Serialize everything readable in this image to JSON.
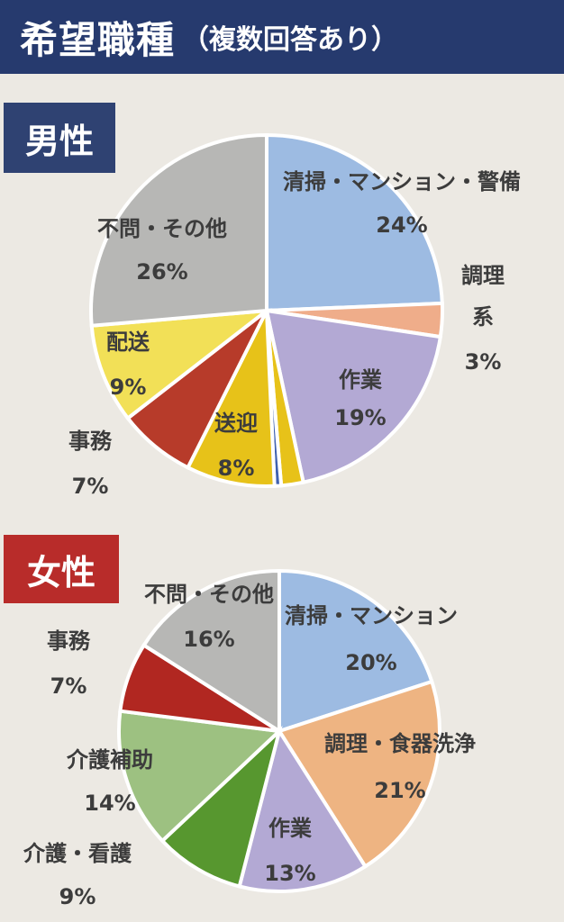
{
  "header": {
    "title": "希望職種",
    "subtitle": "（複数回答あり）"
  },
  "badges": {
    "male": "男性",
    "female": "女性"
  },
  "chart_data": [
    {
      "type": "pie",
      "group": "男性",
      "slices": [
        {
          "label": "清掃・マンション・警備",
          "value": 24,
          "value_label": "24%",
          "color": "#9dbbe2"
        },
        {
          "label": "調理系",
          "value": 3,
          "value_label": "3%",
          "color": "#efad8a"
        },
        {
          "label": "作業",
          "value": 19,
          "value_label": "19%",
          "color": "#b3a9d4"
        },
        {
          "label": "",
          "value": 2,
          "value_label": "",
          "color": "#e7c219"
        },
        {
          "label": "",
          "value": 0.6,
          "value_label": "",
          "color": "#3f61b0"
        },
        {
          "label": "送迎",
          "value": 8,
          "value_label": "8%",
          "color": "#e7c219"
        },
        {
          "label": "事務",
          "value": 7,
          "value_label": "7%",
          "color": "#b73b2a"
        },
        {
          "label": "配送",
          "value": 9,
          "value_label": "9%",
          "color": "#f2e057"
        },
        {
          "label": "不問・その他",
          "value": 26,
          "value_label": "26%",
          "color": "#b7b7b5"
        }
      ]
    },
    {
      "type": "pie",
      "group": "女性",
      "slices": [
        {
          "label": "清掃・マンション",
          "value": 20,
          "value_label": "20%",
          "color": "#9dbbe2"
        },
        {
          "label": "調理・食器洗浄",
          "value": 21,
          "value_label": "21%",
          "color": "#eeb482"
        },
        {
          "label": "作業",
          "value": 13,
          "value_label": "13%",
          "color": "#b3a9d4"
        },
        {
          "label": "介護・看護",
          "value": 9,
          "value_label": "9%",
          "color": "#57972f"
        },
        {
          "label": "介護補助",
          "value": 14,
          "value_label": "14%",
          "color": "#9dc181"
        },
        {
          "label": "事務",
          "value": 7,
          "value_label": "7%",
          "color": "#b12721"
        },
        {
          "label": "不問・その他",
          "value": 16,
          "value_label": "16%",
          "color": "#b7b7b5"
        }
      ]
    }
  ]
}
